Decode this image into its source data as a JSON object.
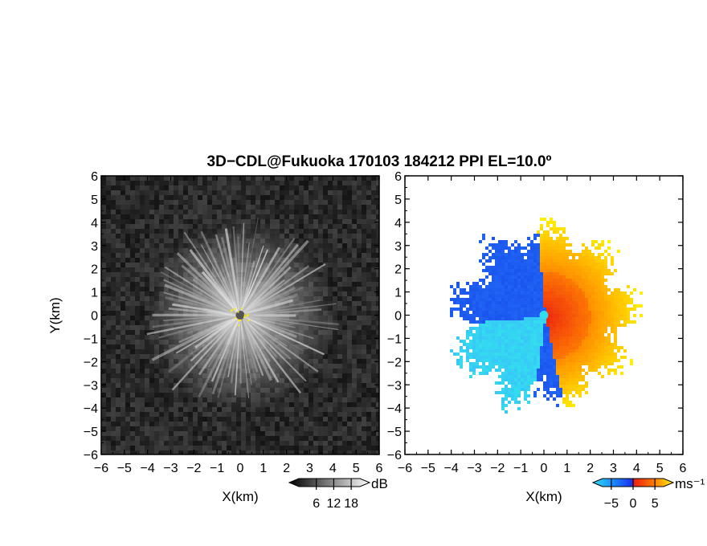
{
  "title": "3D−CDL@Fukuoka 170103 184212 PPI EL=10.0º",
  "chart_data": [
    {
      "type": "heatmap",
      "panel": "left",
      "quantity": "SNR",
      "xlabel": "X(km)",
      "ylabel": "Y(km)",
      "xlim": [
        -6,
        6
      ],
      "ylim": [
        -6,
        6
      ],
      "xticks": [
        "−6",
        "−5",
        "−4",
        "−3",
        "−2",
        "−1",
        "0",
        "1",
        "2",
        "3",
        "4",
        "5",
        "6"
      ],
      "yticks": [
        "6",
        "5",
        "4",
        "3",
        "2",
        "1",
        "0",
        "−1",
        "−2",
        "−3",
        "−4",
        "−5",
        "−6"
      ],
      "colorscale": "grayscale",
      "colorbar": {
        "ticks": [
          "6",
          "12",
          "18"
        ],
        "tick_values": [
          6,
          12,
          18
        ],
        "range": [
          0,
          21
        ],
        "unit": "dB"
      },
      "description_values": {
        "center_x": 0,
        "center_y": 0,
        "max_range_km": 4.2
      }
    },
    {
      "type": "heatmap",
      "panel": "right",
      "quantity": "Doppler velocity",
      "xlabel": "X(km)",
      "ylabel": "",
      "xlim": [
        -6,
        6
      ],
      "ylim": [
        -6,
        6
      ],
      "xticks": [
        "−6",
        "−5",
        "−4",
        "−3",
        "−2",
        "−1",
        "0",
        "1",
        "2",
        "3",
        "4",
        "5",
        "6"
      ],
      "yticks": [
        "6",
        "5",
        "4",
        "3",
        "2",
        "1",
        "0",
        "−1",
        "−2",
        "−3",
        "−4",
        "−5",
        "−6"
      ],
      "colorscale": "cyan-blue-red-yellow",
      "colorbar": {
        "ticks": [
          "−5",
          "0",
          "5"
        ],
        "tick_values": [
          -5,
          0,
          5
        ],
        "range": [
          -7,
          7
        ],
        "unit": "ms⁻¹"
      },
      "description_values": {
        "center_x": 0,
        "center_y": 0,
        "max_range_km": 4.3
      }
    }
  ],
  "colors": {
    "cyan": "#33ddee",
    "blue": "#1a55ee",
    "red": "#ee2211",
    "orange": "#ff8800",
    "yellow": "#ffee00",
    "gray_dark": "#2a2a2a",
    "gray_light": "#ffffff"
  }
}
